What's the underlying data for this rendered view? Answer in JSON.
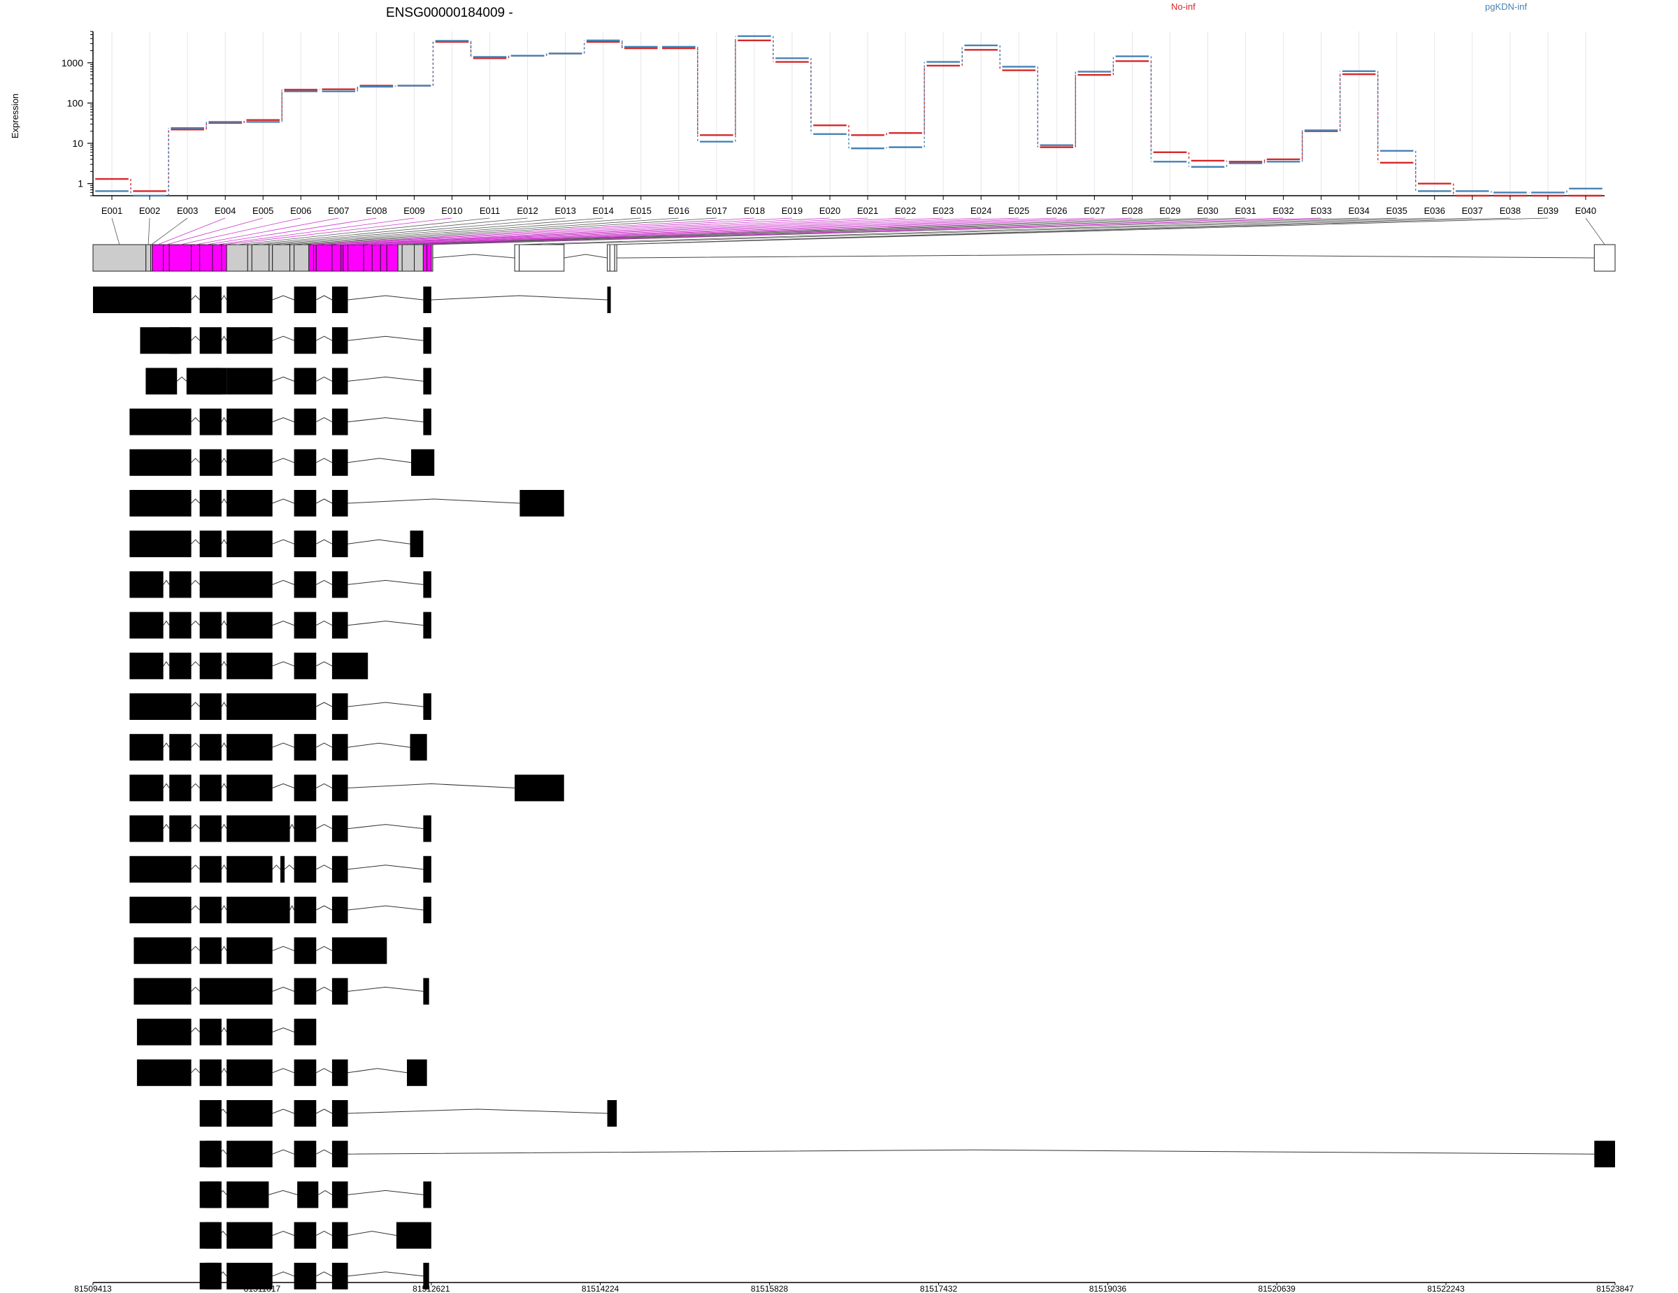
{
  "chart_data": {
    "type": "line",
    "title": "ENSG00000184009 -",
    "ylabel": "Expression",
    "xlabel": "",
    "yscale": "log",
    "ylim": [
      0.5,
      6000
    ],
    "y_ticks": [
      1,
      10,
      100,
      1000
    ],
    "y_tick_labels": [
      "1",
      "10",
      "100",
      "1000"
    ],
    "grid": "vertical",
    "legend_position": "top",
    "categories": [
      "E001",
      "E002",
      "E003",
      "E004",
      "E005",
      "E006",
      "E007",
      "E008",
      "E009",
      "E010",
      "E011",
      "E012",
      "E013",
      "E014",
      "E015",
      "E016",
      "E017",
      "E018",
      "E019",
      "E020",
      "E021",
      "E022",
      "E023",
      "E024",
      "E025",
      "E026",
      "E027",
      "E028",
      "E029",
      "E030",
      "E031",
      "E032",
      "E033",
      "E034",
      "E035",
      "E036",
      "E037",
      "E038",
      "E039",
      "E040"
    ],
    "series": [
      {
        "name": "No-inf",
        "color": "#d62728",
        "values": [
          1.3,
          0.65,
          22,
          32,
          38,
          215,
          220,
          270,
          270,
          3300,
          1300,
          1500,
          1700,
          3300,
          2300,
          2300,
          16,
          3600,
          1050,
          28,
          16,
          18,
          850,
          2100,
          650,
          8,
          500,
          1100,
          6,
          3.7,
          3.5,
          4,
          20,
          520,
          3.3,
          1,
          0.5,
          0.5,
          0.5,
          0.5
        ]
      },
      {
        "name": "pgKDN-inf",
        "color": "#4682b4",
        "values": [
          0.65,
          0.5,
          24,
          34,
          34,
          195,
          195,
          255,
          270,
          3500,
          1400,
          1500,
          1700,
          3600,
          2500,
          2500,
          11,
          4600,
          1300,
          17,
          7.5,
          8,
          1050,
          2700,
          800,
          9,
          600,
          1450,
          3.5,
          2.6,
          3.2,
          3.5,
          21,
          620,
          6.5,
          0.65,
          0.65,
          0.6,
          0.6,
          0.75
        ]
      }
    ],
    "gene_model": {
      "genomic_axis_labels": [
        "81509413",
        "81511017",
        "81512621",
        "81514224",
        "81515828",
        "81517432",
        "81519036",
        "81520639",
        "81522243",
        "81523847"
      ],
      "exon_count": 40,
      "transcript_count": 24
    }
  }
}
